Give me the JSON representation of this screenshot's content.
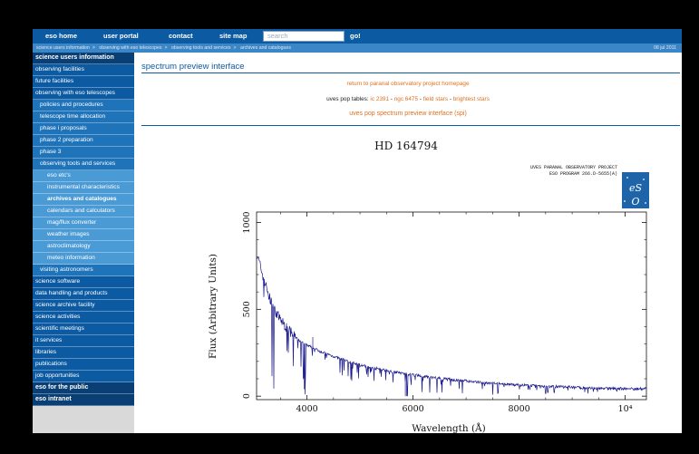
{
  "topnav": {
    "links": [
      "eso home",
      "user portal",
      "contact",
      "site map"
    ],
    "search_placeholder": "search",
    "go_label": "go!"
  },
  "breadcrumb": {
    "items": [
      "science users information",
      "observing with eso telescopes",
      "observing tools and services",
      "archives and catalogues"
    ],
    "date": "08 jul 2011"
  },
  "sidebar": {
    "items": [
      {
        "label": "science users information",
        "level": 0,
        "bold": true
      },
      {
        "label": "observing facilities",
        "level": 0
      },
      {
        "label": "future facilities",
        "level": 0
      },
      {
        "label": "observing with eso telescopes",
        "level": 0
      },
      {
        "label": "policies and procedures",
        "level": 1
      },
      {
        "label": "telescope time allocation",
        "level": 1
      },
      {
        "label": "phase i proposals",
        "level": 1
      },
      {
        "label": "phase 2 preparation",
        "level": 1
      },
      {
        "label": "phase 3",
        "level": 1
      },
      {
        "label": "observing tools and services",
        "level": 1
      },
      {
        "label": "eso etc's",
        "level": 2
      },
      {
        "label": "instrumental characteristics",
        "level": 2
      },
      {
        "label": "archives and catalogues",
        "level": 2,
        "active": true
      },
      {
        "label": "calendars and calculators",
        "level": 2
      },
      {
        "label": "mag/flux converter",
        "level": 2
      },
      {
        "label": "weather images",
        "level": 2
      },
      {
        "label": "astroclimatology",
        "level": 2
      },
      {
        "label": "meteo information",
        "level": 2
      },
      {
        "label": "visiting astronomers",
        "level": 1
      },
      {
        "label": "science software",
        "level": 0
      },
      {
        "label": "data handling and products",
        "level": 0
      },
      {
        "label": "science archive facility",
        "level": 0
      },
      {
        "label": "science activities",
        "level": 0
      },
      {
        "label": "scientific meetings",
        "level": 0
      },
      {
        "label": "it services",
        "level": 0
      },
      {
        "label": "libraries",
        "level": 0
      },
      {
        "label": "publications",
        "level": 0
      },
      {
        "label": "job opportunities",
        "level": 0
      },
      {
        "label": "eso for the public",
        "level": 0,
        "bold": true
      },
      {
        "label": "eso intranet",
        "level": 0,
        "bold": true
      }
    ]
  },
  "main": {
    "title": "spectrum preview interface",
    "return_link": "return to paranal observatory project homepage",
    "pop_prefix": "uves pop tables: ",
    "pop_links": [
      "ic 2391",
      "ngc 6475",
      "field stars",
      "brightest stars"
    ],
    "spi_link": "uves pop spectrum preview interface (spi)"
  },
  "chart_data": {
    "type": "line",
    "title": "HD 164794",
    "header_lines": [
      "UVES PARANAL OBSERVATORY PROJECT",
      "ESO PROGRAM 266.D-5655(A)"
    ],
    "xlabel": "Wavelength (Å)",
    "ylabel": "Flux (Arbitrary Units)",
    "xlim": [
      3050,
      10400
    ],
    "ylim": [
      -20,
      1060
    ],
    "xticks": [
      4000,
      6000,
      8000,
      10000
    ],
    "xtick_labels": [
      "4000",
      "6000",
      "8000",
      "10⁴"
    ],
    "yticks": [
      0,
      500,
      1000
    ],
    "series": [
      {
        "color": "#1a1a8c",
        "x": [
          3050,
          3100,
          3200,
          3300,
          3400,
          3500,
          3600,
          3700,
          3800,
          3900,
          4000,
          4200,
          4400,
          4600,
          4800,
          5000,
          5250,
          5500,
          5750,
          6000,
          6250,
          6500,
          6750,
          7000,
          7250,
          7500,
          7750,
          8000,
          8250,
          8500,
          8750,
          9000,
          9250,
          9500,
          9750,
          10000,
          10250,
          10400
        ],
        "y": [
          820,
          770,
          660,
          560,
          490,
          440,
          400,
          365,
          335,
          310,
          295,
          265,
          240,
          218,
          198,
          180,
          163,
          148,
          134,
          122,
          111,
          102,
          94,
          87,
          80,
          74,
          69,
          64,
          60,
          57,
          54,
          51,
          48,
          46,
          44,
          43,
          42,
          42
        ]
      }
    ],
    "grid": false
  },
  "logo": {
    "name": "eso-logo-icon"
  }
}
